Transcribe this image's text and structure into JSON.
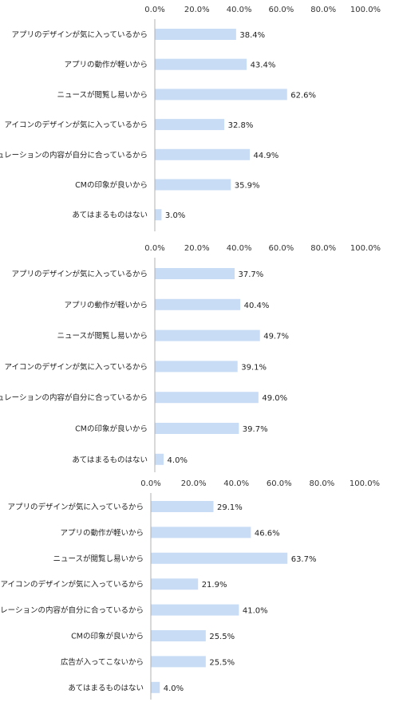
{
  "colors": {
    "bar": "#c9dcf5",
    "axis": "#b0b0b0"
  },
  "chart_data": [
    {
      "type": "bar",
      "orientation": "horizontal",
      "x_ticks": [
        "0.0%",
        "20.0%",
        "40.0%",
        "60.0%",
        "80.0%",
        "100.0%"
      ],
      "xlim": [
        0,
        100
      ],
      "categories": [
        "アプリのデザインが気に入っているから",
        "アプリの動作が軽いから",
        "ニュースが閲覧し易いから",
        "アイコンのデザインが気に入っているから",
        "キュレーションの内容が自分に合っているから",
        "CMの印象が良いから",
        "あてはまるものはない"
      ],
      "values": [
        38.4,
        43.4,
        62.6,
        32.8,
        44.9,
        35.9,
        3.0
      ],
      "value_labels": [
        "38.4%",
        "43.4%",
        "62.6%",
        "32.8%",
        "44.9%",
        "35.9%",
        "3.0%"
      ]
    },
    {
      "type": "bar",
      "orientation": "horizontal",
      "x_ticks": [
        "0.0%",
        "20.0%",
        "40.0%",
        "60.0%",
        "80.0%",
        "100.0%"
      ],
      "xlim": [
        0,
        100
      ],
      "categories": [
        "アプリのデザインが気に入っているから",
        "アプリの動作が軽いから",
        "ニュースが閲覧し易いから",
        "アイコンのデザインが気に入っているから",
        "キュレーションの内容が自分に合っているから",
        "CMの印象が良いから",
        "あてはまるものはない"
      ],
      "values": [
        37.7,
        40.4,
        49.7,
        39.1,
        49.0,
        39.7,
        4.0
      ],
      "value_labels": [
        "37.7%",
        "40.4%",
        "49.7%",
        "39.1%",
        "49.0%",
        "39.7%",
        "4.0%"
      ]
    },
    {
      "type": "bar",
      "orientation": "horizontal",
      "x_ticks": [
        "0.0%",
        "20.0%",
        "40.0%",
        "60.0%",
        "80.0%",
        "100.0%"
      ],
      "xlim": [
        0,
        100
      ],
      "categories": [
        "アプリのデザインが気に入っているから",
        "アプリの動作が軽いから",
        "ニュースが閲覧し易いから",
        "アイコンのデザインが気に入っているから",
        "キュレーションの内容が自分に合っているから",
        "CMの印象が良いから",
        "広告が入ってこないから",
        "あてはまるものはない"
      ],
      "values": [
        29.1,
        46.6,
        63.7,
        21.9,
        41.0,
        25.5,
        25.5,
        4.0
      ],
      "value_labels": [
        "29.1%",
        "46.6%",
        "63.7%",
        "21.9%",
        "41.0%",
        "25.5%",
        "25.5%",
        "4.0%"
      ]
    }
  ]
}
